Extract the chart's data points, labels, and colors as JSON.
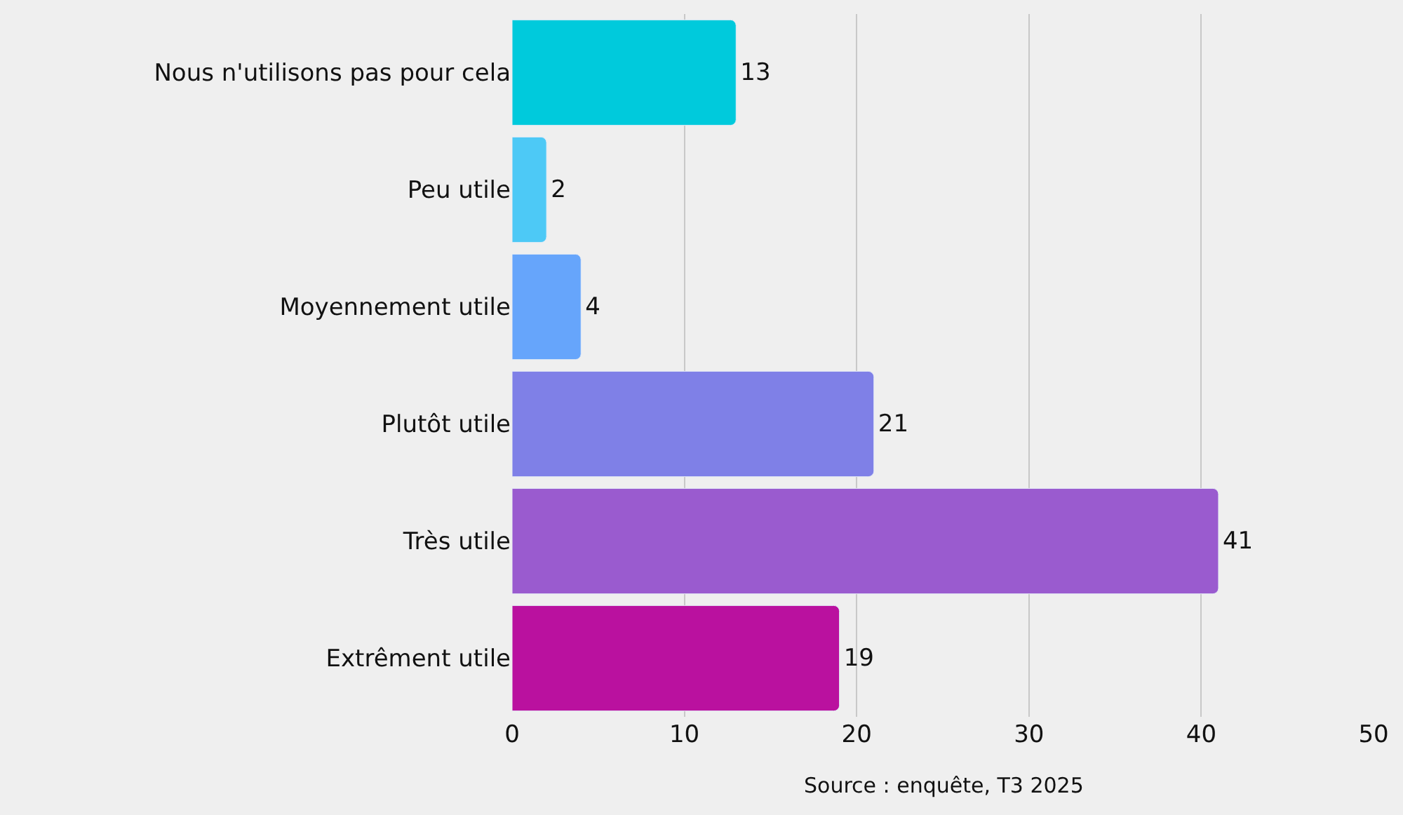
{
  "chart_data": {
    "type": "bar",
    "orientation": "horizontal",
    "categories": [
      "Nous n'utilisons pas pour cela",
      "Peu utile",
      "Moyennement utile",
      "Plutôt utile",
      "Très utile",
      "Extrêment utile"
    ],
    "values": [
      13,
      2,
      4,
      21,
      41,
      19
    ],
    "colors": [
      "#00cadc",
      "#4dc9f6",
      "#66a5fb",
      "#7f80e7",
      "#9a5bcf",
      "#ba119f"
    ],
    "xlim": [
      0,
      50
    ],
    "xticks": [
      0,
      10,
      20,
      30,
      40,
      50
    ],
    "grid": "x",
    "data_labels": true,
    "legend": false,
    "annotations": [
      "Source : enquête, T3 2025"
    ]
  }
}
